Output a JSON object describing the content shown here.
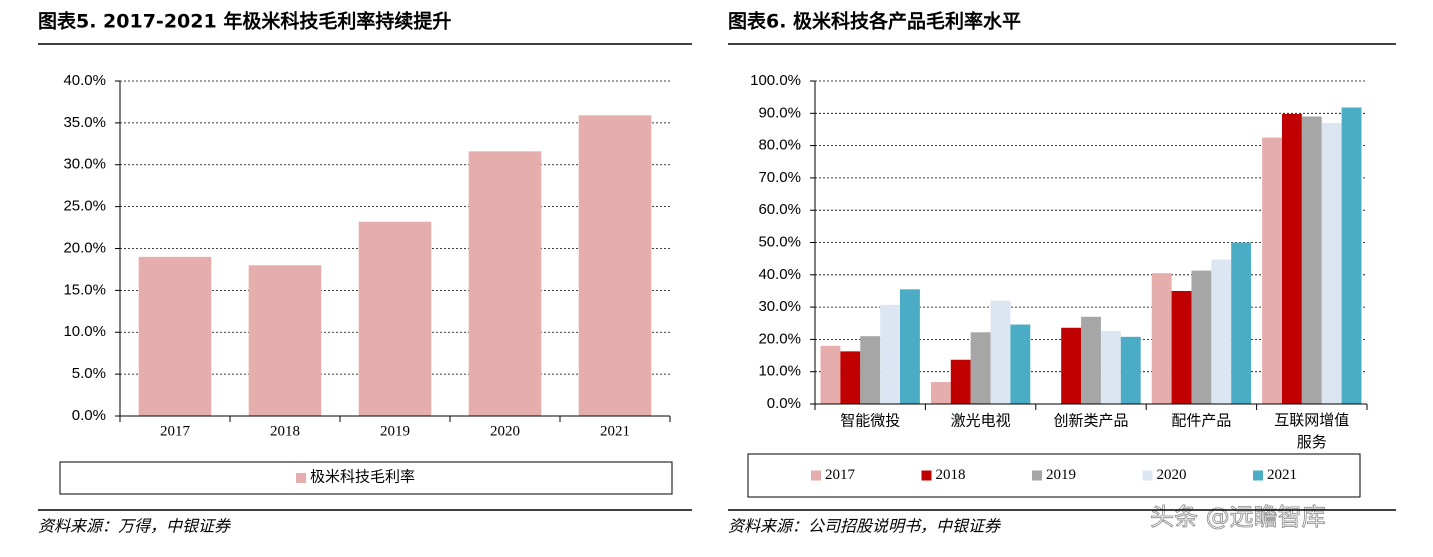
{
  "chart_data": [
    {
      "type": "bar",
      "title": "图表5. 2017-2021 年极米科技毛利率持续提升",
      "source": "资料来源：万得，中银证券",
      "categories": [
        "2017",
        "2018",
        "2019",
        "2020",
        "2021"
      ],
      "series": [
        {
          "name": "极米科技毛利率",
          "color": "#e6adad",
          "values": [
            19.0,
            18.0,
            23.2,
            31.6,
            35.9
          ]
        }
      ],
      "ylim": [
        0,
        40
      ],
      "yticks": [
        {
          "value": 0,
          "label": "0.0%"
        },
        {
          "value": 5,
          "label": "5.0%"
        },
        {
          "value": 10,
          "label": "10.0%"
        },
        {
          "value": 15,
          "label": "15.0%"
        },
        {
          "value": 20,
          "label": "20.0%"
        },
        {
          "value": 25,
          "label": "25.0%"
        },
        {
          "value": 30,
          "label": "30.0%"
        },
        {
          "value": 35,
          "label": "35.0%"
        },
        {
          "value": 40,
          "label": "40.0%"
        }
      ],
      "grid": true,
      "legend": "bottom"
    },
    {
      "type": "bar",
      "title": "图表6. 极米科技各产品毛利率水平",
      "source": "资料来源：公司招股说明书，中银证券",
      "categories": [
        "智能微投",
        "激光电视",
        "创新类产品",
        "配件产品",
        "互联网增值服务"
      ],
      "series": [
        {
          "name": "2017",
          "color": "#e6adad",
          "values": [
            18.0,
            6.8,
            null,
            40.5,
            82.5
          ]
        },
        {
          "name": "2018",
          "color": "#c00000",
          "values": [
            16.3,
            13.7,
            23.6,
            35.0,
            89.8
          ]
        },
        {
          "name": "2019",
          "color": "#a6a6a6",
          "values": [
            21.0,
            22.2,
            27.0,
            41.3,
            89.0
          ]
        },
        {
          "name": "2020",
          "color": "#dce6f2",
          "values": [
            30.7,
            32.0,
            22.6,
            44.7,
            87.0
          ]
        },
        {
          "name": "2021",
          "color": "#4bacc6",
          "values": [
            35.5,
            24.6,
            20.8,
            50.0,
            91.8
          ]
        }
      ],
      "ylim": [
        0,
        100
      ],
      "yticks": [
        {
          "value": 0,
          "label": "0.0%"
        },
        {
          "value": 10,
          "label": "10.0%"
        },
        {
          "value": 20,
          "label": "20.0%"
        },
        {
          "value": 30,
          "label": "30.0%"
        },
        {
          "value": 40,
          "label": "40.0%"
        },
        {
          "value": 50,
          "label": "50.0%"
        },
        {
          "value": 60,
          "label": "60.0%"
        },
        {
          "value": 70,
          "label": "70.0%"
        },
        {
          "value": 80,
          "label": "80.0%"
        },
        {
          "value": 90,
          "label": "90.0%"
        },
        {
          "value": 100,
          "label": "100.0%"
        }
      ],
      "grid": true,
      "legend": "bottom"
    }
  ],
  "watermark": "头条 @远瞻智库"
}
